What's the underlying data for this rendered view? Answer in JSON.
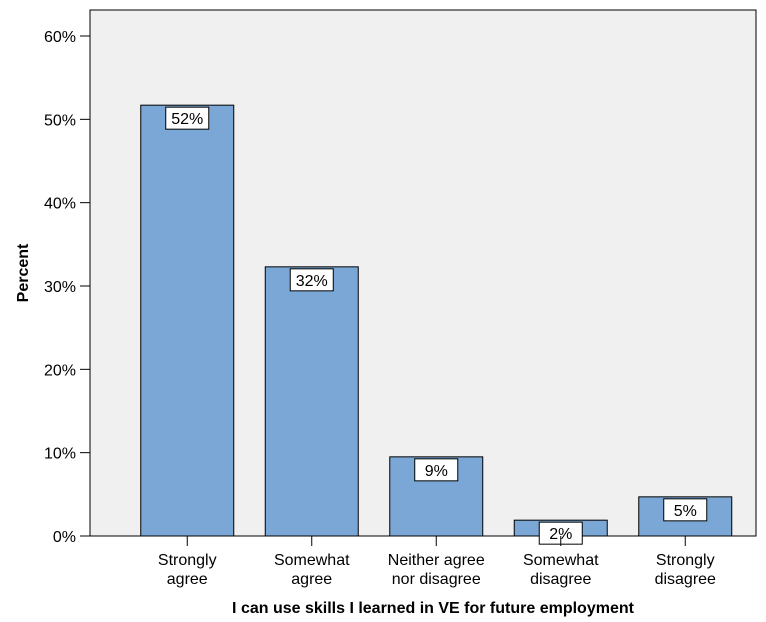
{
  "chart_data": {
    "type": "bar",
    "categories": [
      [
        "Strongly",
        "agree"
      ],
      [
        "Somewhat",
        "agree"
      ],
      [
        "Neither agree",
        "nor disagree"
      ],
      [
        "Somewhat",
        "disagree"
      ],
      [
        "Strongly",
        "disagree"
      ]
    ],
    "values": [
      51.7,
      32.3,
      9.5,
      1.9,
      4.7
    ],
    "data_labels": [
      "52%",
      "32%",
      "9%",
      "2%",
      "5%"
    ],
    "xlabel": "I can use skills I learned in VE for future employment",
    "ylabel": "Percent",
    "ylim": [
      0,
      60
    ],
    "yticks": [
      {
        "value": 0,
        "label": "0%"
      },
      {
        "value": 10,
        "label": "10%"
      },
      {
        "value": 20,
        "label": "20%"
      },
      {
        "value": 30,
        "label": "30%"
      },
      {
        "value": 40,
        "label": "40%"
      },
      {
        "value": 50,
        "label": "50%"
      },
      {
        "value": 60,
        "label": "60%"
      }
    ],
    "grid": false,
    "colors": {
      "bar_fill": "#7aa7d6",
      "bar_stroke": "#000000",
      "plot_background": "#f0f0f0"
    }
  }
}
